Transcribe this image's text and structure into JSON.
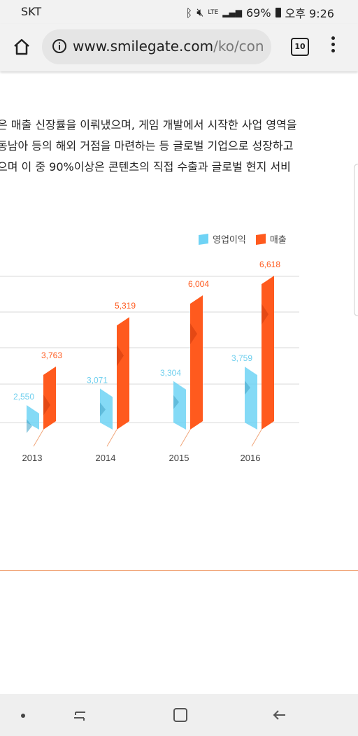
{
  "status": {
    "carrier": "SKT",
    "network": "LTE",
    "battery": "69%",
    "time": "오후 9:26"
  },
  "browser": {
    "url_host": "www.smilegate.com",
    "url_path": "/ko/con",
    "tab_count": "10"
  },
  "article": {
    "lines": [
      "은 매출 신장률을 이뤄냈으며, 게임 개발에서 시작한 사업 영역을",
      "동남아 등의 해외 거점을 마련하는 등 글로벌 기업으로 성장하고",
      "으며 이 중 90%이상은 콘텐츠의 직접 수출과 글로벌 현지 서비"
    ]
  },
  "legend": {
    "profit": "영업이익",
    "revenue": "매출"
  },
  "colors": {
    "profit": "#6fd3f5",
    "revenue": "#ff5a1e",
    "grid": "#d8d8d8",
    "divider": "#f1a67a"
  },
  "chart_data": {
    "type": "bar",
    "categories": [
      "2013",
      "2014",
      "2015",
      "2016"
    ],
    "series": [
      {
        "name": "영업이익",
        "values": [
          2550,
          3071,
          3304,
          3759
        ]
      },
      {
        "name": "매출",
        "values": [
          3763,
          5319,
          6004,
          6618
        ]
      }
    ],
    "value_labels": {
      "영업이익": [
        "2,550",
        "3,071",
        "3,304",
        "3,759"
      ],
      "매출": [
        "3,763",
        "5,319",
        "6,004",
        "6,618"
      ]
    },
    "ylim": [
      2000,
      6600
    ],
    "grid": true,
    "legend_position": "top-right"
  }
}
